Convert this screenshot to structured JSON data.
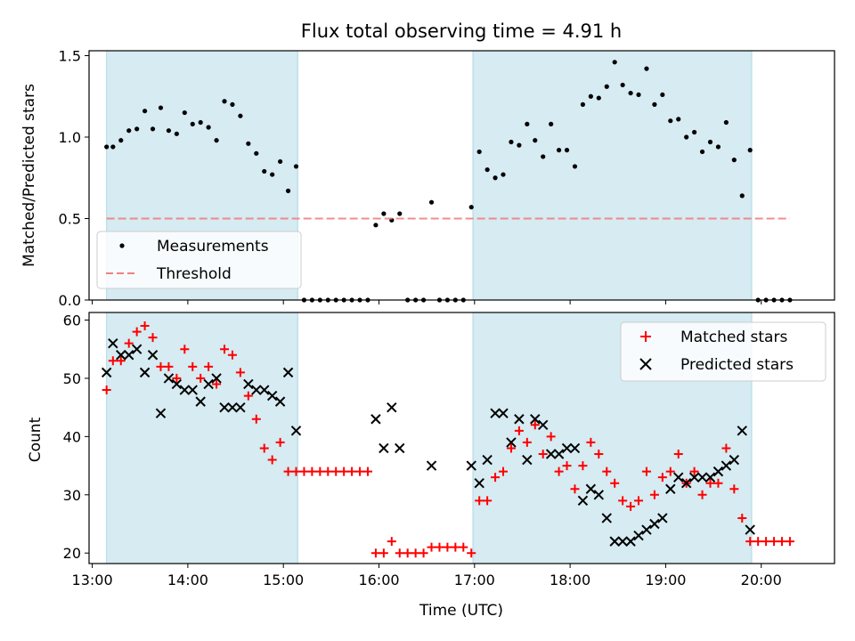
{
  "chart_data": [
    {
      "type": "scatter",
      "title": "Flux total observing time = 4.91 h",
      "ylabel": "Matched/Predicted stars",
      "xlim": [
        "12:58",
        "20:46"
      ],
      "ylim": [
        0,
        1.53
      ],
      "yticks": [
        0.0,
        0.5,
        1.0,
        1.5
      ],
      "ytick_labels": [
        "0.0",
        "0.5",
        "1.0",
        "1.5"
      ],
      "legend_position": "lower-left",
      "shaded_intervals": [
        [
          "13:09",
          "15:09"
        ],
        [
          "16:59",
          "19:54"
        ]
      ],
      "shade_color": "#add8e6",
      "series": [
        {
          "name": "Measurements",
          "marker": "dot",
          "color": "#000000",
          "points": [
            [
              "13:09",
              0.94
            ],
            [
              "13:13",
              0.94
            ],
            [
              "13:18",
              0.98
            ],
            [
              "13:23",
              1.04
            ],
            [
              "13:28",
              1.05
            ],
            [
              "13:33",
              1.16
            ],
            [
              "13:38",
              1.05
            ],
            [
              "13:43",
              1.18
            ],
            [
              "13:48",
              1.04
            ],
            [
              "13:53",
              1.02
            ],
            [
              "13:58",
              1.15
            ],
            [
              "14:03",
              1.08
            ],
            [
              "14:08",
              1.09
            ],
            [
              "14:13",
              1.06
            ],
            [
              "14:18",
              0.98
            ],
            [
              "14:23",
              1.22
            ],
            [
              "14:28",
              1.2
            ],
            [
              "14:33",
              1.13
            ],
            [
              "14:38",
              0.96
            ],
            [
              "14:43",
              0.9
            ],
            [
              "14:48",
              0.79
            ],
            [
              "14:53",
              0.77
            ],
            [
              "14:58",
              0.85
            ],
            [
              "15:03",
              0.67
            ],
            [
              "15:08",
              0.82
            ],
            [
              "15:13",
              0
            ],
            [
              "15:18",
              0
            ],
            [
              "15:23",
              0
            ],
            [
              "15:28",
              0
            ],
            [
              "15:33",
              0
            ],
            [
              "15:38",
              0
            ],
            [
              "15:43",
              0
            ],
            [
              "15:48",
              0
            ],
            [
              "15:53",
              0
            ],
            [
              "15:58",
              0.46
            ],
            [
              "16:03",
              0.53
            ],
            [
              "16:08",
              0.49
            ],
            [
              "16:13",
              0.53
            ],
            [
              "16:18",
              0
            ],
            [
              "16:23",
              0
            ],
            [
              "16:28",
              0
            ],
            [
              "16:33",
              0.6
            ],
            [
              "16:38",
              0
            ],
            [
              "16:43",
              0
            ],
            [
              "16:48",
              0
            ],
            [
              "16:53",
              0
            ],
            [
              "16:58",
              0.57
            ],
            [
              "17:03",
              0.91
            ],
            [
              "17:08",
              0.8
            ],
            [
              "17:13",
              0.75
            ],
            [
              "17:18",
              0.77
            ],
            [
              "17:23",
              0.97
            ],
            [
              "17:28",
              0.95
            ],
            [
              "17:33",
              1.08
            ],
            [
              "17:38",
              0.98
            ],
            [
              "17:43",
              0.88
            ],
            [
              "17:48",
              1.08
            ],
            [
              "17:53",
              0.92
            ],
            [
              "17:58",
              0.92
            ],
            [
              "18:03",
              0.82
            ],
            [
              "18:08",
              1.2
            ],
            [
              "18:13",
              1.25
            ],
            [
              "18:18",
              1.24
            ],
            [
              "18:23",
              1.31
            ],
            [
              "18:28",
              1.46
            ],
            [
              "18:33",
              1.32
            ],
            [
              "18:38",
              1.27
            ],
            [
              "18:43",
              1.26
            ],
            [
              "18:48",
              1.42
            ],
            [
              "18:53",
              1.2
            ],
            [
              "18:58",
              1.26
            ],
            [
              "19:03",
              1.1
            ],
            [
              "19:08",
              1.11
            ],
            [
              "19:13",
              1.0
            ],
            [
              "19:18",
              1.03
            ],
            [
              "19:23",
              0.91
            ],
            [
              "19:28",
              0.97
            ],
            [
              "19:33",
              0.94
            ],
            [
              "19:38",
              1.09
            ],
            [
              "19:43",
              0.86
            ],
            [
              "19:48",
              0.64
            ],
            [
              "19:53",
              0.92
            ],
            [
              "19:58",
              0
            ],
            [
              "20:03",
              0
            ],
            [
              "20:08",
              0
            ],
            [
              "20:13",
              0
            ],
            [
              "20:18",
              0
            ]
          ]
        },
        {
          "name": "Threshold",
          "type": "line",
          "style": "dashed",
          "color": "#f08080",
          "points": [
            [
              "13:09",
              0.5
            ],
            [
              "20:18",
              0.5
            ]
          ]
        }
      ]
    },
    {
      "type": "scatter",
      "xlabel": "Time (UTC)",
      "ylabel": "Count",
      "xlim": [
        "12:58",
        "20:46"
      ],
      "ylim": [
        18.2,
        61.3
      ],
      "yticks": [
        20,
        30,
        40,
        50,
        60
      ],
      "ytick_labels": [
        "20",
        "30",
        "40",
        "50",
        "60"
      ],
      "xticks": [
        "13:00",
        "14:00",
        "15:00",
        "16:00",
        "17:00",
        "18:00",
        "19:00",
        "20:00"
      ],
      "xtick_labels": [
        "13:00",
        "14:00",
        "15:00",
        "16:00",
        "17:00",
        "18:00",
        "19:00",
        "20:00"
      ],
      "legend_position": "upper-right",
      "shaded_intervals": [
        [
          "13:09",
          "15:09"
        ],
        [
          "16:59",
          "19:54"
        ]
      ],
      "shade_color": "#add8e6",
      "series": [
        {
          "name": "Matched stars",
          "marker": "plus",
          "color": "#ff0000",
          "points": [
            [
              "13:09",
              48
            ],
            [
              "13:13",
              53
            ],
            [
              "13:18",
              53
            ],
            [
              "13:23",
              56
            ],
            [
              "13:28",
              58
            ],
            [
              "13:33",
              59
            ],
            [
              "13:38",
              57
            ],
            [
              "13:43",
              52
            ],
            [
              "13:48",
              52
            ],
            [
              "13:53",
              50
            ],
            [
              "13:58",
              55
            ],
            [
              "14:03",
              52
            ],
            [
              "14:08",
              50
            ],
            [
              "14:13",
              52
            ],
            [
              "14:18",
              49
            ],
            [
              "14:23",
              55
            ],
            [
              "14:28",
              54
            ],
            [
              "14:33",
              51
            ],
            [
              "14:38",
              47
            ],
            [
              "14:43",
              43
            ],
            [
              "14:48",
              38
            ],
            [
              "14:53",
              36
            ],
            [
              "14:58",
              39
            ],
            [
              "15:03",
              34
            ],
            [
              "15:08",
              34
            ],
            [
              "15:13",
              34
            ],
            [
              "15:18",
              34
            ],
            [
              "15:23",
              34
            ],
            [
              "15:28",
              34
            ],
            [
              "15:33",
              34
            ],
            [
              "15:38",
              34
            ],
            [
              "15:43",
              34
            ],
            [
              "15:48",
              34
            ],
            [
              "15:53",
              34
            ],
            [
              "15:58",
              20
            ],
            [
              "16:03",
              20
            ],
            [
              "16:08",
              22
            ],
            [
              "16:13",
              20
            ],
            [
              "16:18",
              20
            ],
            [
              "16:23",
              20
            ],
            [
              "16:28",
              20
            ],
            [
              "16:33",
              21
            ],
            [
              "16:38",
              21
            ],
            [
              "16:43",
              21
            ],
            [
              "16:48",
              21
            ],
            [
              "16:53",
              21
            ],
            [
              "16:58",
              20
            ],
            [
              "17:03",
              29
            ],
            [
              "17:08",
              29
            ],
            [
              "17:13",
              33
            ],
            [
              "17:18",
              34
            ],
            [
              "17:23",
              38
            ],
            [
              "17:28",
              41
            ],
            [
              "17:33",
              39
            ],
            [
              "17:38",
              42
            ],
            [
              "17:43",
              37
            ],
            [
              "17:48",
              40
            ],
            [
              "17:53",
              34
            ],
            [
              "17:58",
              35
            ],
            [
              "18:03",
              31
            ],
            [
              "18:08",
              35
            ],
            [
              "18:13",
              39
            ],
            [
              "18:18",
              37
            ],
            [
              "18:23",
              34
            ],
            [
              "18:28",
              32
            ],
            [
              "18:33",
              29
            ],
            [
              "18:38",
              28
            ],
            [
              "18:43",
              29
            ],
            [
              "18:48",
              34
            ],
            [
              "18:53",
              30
            ],
            [
              "18:58",
              33
            ],
            [
              "19:03",
              34
            ],
            [
              "19:08",
              37
            ],
            [
              "19:13",
              32
            ],
            [
              "19:18",
              34
            ],
            [
              "19:23",
              30
            ],
            [
              "19:28",
              32
            ],
            [
              "19:33",
              32
            ],
            [
              "19:38",
              38
            ],
            [
              "19:43",
              31
            ],
            [
              "19:48",
              26
            ],
            [
              "19:53",
              22
            ],
            [
              "19:58",
              22
            ],
            [
              "20:03",
              22
            ],
            [
              "20:08",
              22
            ],
            [
              "20:13",
              22
            ],
            [
              "20:18",
              22
            ]
          ]
        },
        {
          "name": "Predicted stars",
          "marker": "x",
          "color": "#000000",
          "points": [
            [
              "13:09",
              51
            ],
            [
              "13:13",
              56
            ],
            [
              "13:18",
              54
            ],
            [
              "13:23",
              54
            ],
            [
              "13:28",
              55
            ],
            [
              "13:33",
              51
            ],
            [
              "13:38",
              54
            ],
            [
              "13:43",
              44
            ],
            [
              "13:48",
              50
            ],
            [
              "13:53",
              49
            ],
            [
              "13:58",
              48
            ],
            [
              "14:03",
              48
            ],
            [
              "14:08",
              46
            ],
            [
              "14:13",
              49
            ],
            [
              "14:18",
              50
            ],
            [
              "14:23",
              45
            ],
            [
              "14:28",
              45
            ],
            [
              "14:33",
              45
            ],
            [
              "14:38",
              49
            ],
            [
              "14:43",
              48
            ],
            [
              "14:48",
              48
            ],
            [
              "14:53",
              47
            ],
            [
              "14:58",
              46
            ],
            [
              "15:03",
              51
            ],
            [
              "15:08",
              41
            ],
            [
              "15:58",
              43
            ],
            [
              "16:03",
              38
            ],
            [
              "16:08",
              45
            ],
            [
              "16:13",
              38
            ],
            [
              "16:33",
              35
            ],
            [
              "16:58",
              35
            ],
            [
              "17:03",
              32
            ],
            [
              "17:08",
              36
            ],
            [
              "17:13",
              44
            ],
            [
              "17:18",
              44
            ],
            [
              "17:23",
              39
            ],
            [
              "17:28",
              43
            ],
            [
              "17:33",
              36
            ],
            [
              "17:38",
              43
            ],
            [
              "17:43",
              42
            ],
            [
              "17:48",
              37
            ],
            [
              "17:53",
              37
            ],
            [
              "17:58",
              38
            ],
            [
              "18:03",
              38
            ],
            [
              "18:08",
              29
            ],
            [
              "18:13",
              31
            ],
            [
              "18:18",
              30
            ],
            [
              "18:23",
              26
            ],
            [
              "18:28",
              22
            ],
            [
              "18:33",
              22
            ],
            [
              "18:38",
              22
            ],
            [
              "18:43",
              23
            ],
            [
              "18:48",
              24
            ],
            [
              "18:53",
              25
            ],
            [
              "18:58",
              26
            ],
            [
              "19:03",
              31
            ],
            [
              "19:08",
              33
            ],
            [
              "19:13",
              32
            ],
            [
              "19:18",
              33
            ],
            [
              "19:23",
              33
            ],
            [
              "19:28",
              33
            ],
            [
              "19:33",
              34
            ],
            [
              "19:38",
              35
            ],
            [
              "19:43",
              36
            ],
            [
              "19:48",
              41
            ],
            [
              "19:53",
              24
            ]
          ]
        }
      ]
    }
  ]
}
